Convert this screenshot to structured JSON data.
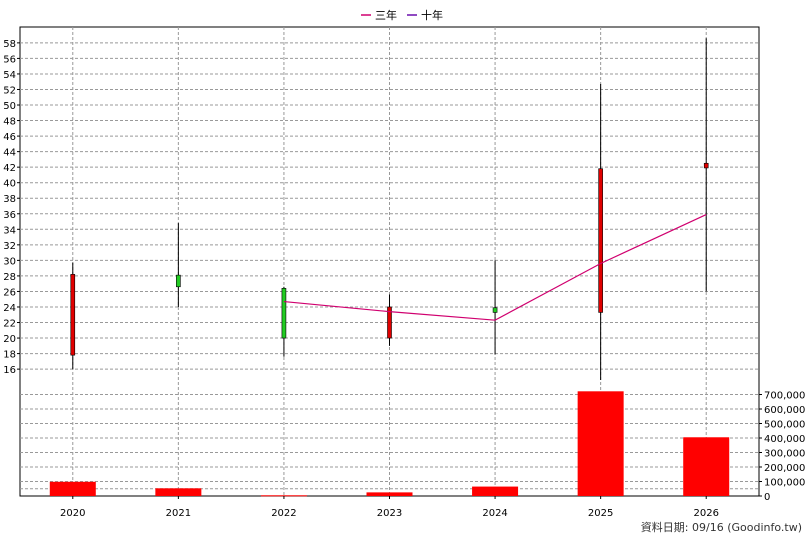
{
  "chart_data": {
    "type": "candlestick+volume",
    "legend": [
      {
        "name": "三年",
        "color": "#d0006f"
      },
      {
        "name": "十年",
        "color": "#6a0dad"
      }
    ],
    "categories": [
      "2020",
      "2021",
      "2022",
      "2023",
      "2024",
      "2025",
      "2026"
    ],
    "price_axis": {
      "ylim": [
        14.6,
        59.4
      ],
      "ticks": [
        16,
        18,
        20,
        22,
        24,
        26,
        28,
        30,
        32,
        34,
        36,
        38,
        40,
        42,
        44,
        46,
        48,
        50,
        52,
        54,
        56,
        58
      ]
    },
    "candles": [
      {
        "year": "2020",
        "open": 28.2,
        "close": 17.8,
        "high": 29.7,
        "low": 16.0,
        "color": "#e00000"
      },
      {
        "year": "2021",
        "open": 26.6,
        "close": 28.1,
        "high": 34.8,
        "low": 24.0,
        "color": "#22cc22"
      },
      {
        "year": "2022",
        "open": 20.0,
        "close": 26.4,
        "high": 26.6,
        "low": 17.6,
        "color": "#22cc22"
      },
      {
        "year": "2023",
        "open": 24.0,
        "close": 20.0,
        "high": 25.6,
        "low": 19.0,
        "color": "#e00000"
      },
      {
        "year": "2024",
        "open": 23.3,
        "close": 23.9,
        "high": 30.0,
        "low": 17.9,
        "color": "#22cc22"
      },
      {
        "year": "2025",
        "open": 41.8,
        "close": 23.3,
        "high": 52.7,
        "low": 14.6,
        "color": "#e00000"
      },
      {
        "year": "2026",
        "open": 42.5,
        "close": 41.9,
        "high": 58.6,
        "low": 26.0,
        "color": "#e00000"
      }
    ],
    "series": [
      {
        "name": "三年",
        "color": "#d0006f",
        "points": [
          [
            "2022",
            24.7
          ],
          [
            "2023",
            23.4
          ],
          [
            "2024",
            22.3
          ],
          [
            "2025",
            29.6
          ],
          [
            "2026",
            35.9
          ]
        ]
      }
    ],
    "volume_axis": {
      "ylim": [
        0,
        800000
      ],
      "ticks": [
        0,
        100000,
        200000,
        300000,
        400000,
        500000,
        600000,
        700000
      ],
      "tick_labels": [
        "0",
        "100,000",
        "200,000",
        "300,000",
        "400,000",
        "500,000",
        "600,000",
        "700,000"
      ]
    },
    "volume": [
      {
        "year": "2020",
        "value": 98000
      },
      {
        "year": "2021",
        "value": 53000
      },
      {
        "year": "2022",
        "value": 5000
      },
      {
        "year": "2023",
        "value": 25000
      },
      {
        "year": "2024",
        "value": 65000
      },
      {
        "year": "2025",
        "value": 722000
      },
      {
        "year": "2026",
        "value": 405000
      }
    ]
  },
  "footer": {
    "text": "資料日期: 09/16  (Goodinfo.tw)"
  }
}
